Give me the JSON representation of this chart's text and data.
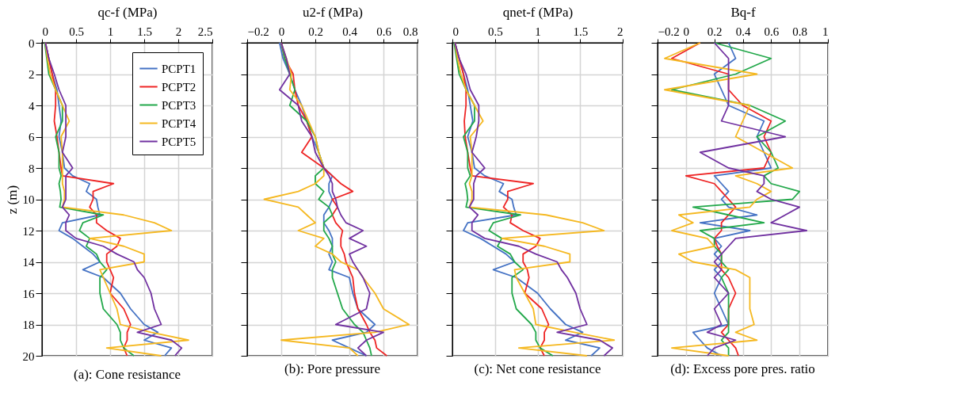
{
  "chart_data": [
    {
      "type": "line",
      "title": "(a): Cone resistance",
      "xlabel": "qc-f (MPa)",
      "ylabel": "z (m)",
      "xlim": [
        0,
        2.5
      ],
      "xticks": [
        0,
        0.5,
        1,
        1.5,
        2,
        2.5
      ],
      "ylim": [
        20,
        0
      ],
      "yticks": [
        0,
        2,
        4,
        6,
        8,
        10,
        12,
        14,
        16,
        18,
        20
      ],
      "grid": true,
      "legend": "top right",
      "series": [
        {
          "name": "PCPT1",
          "color": "#4472c4",
          "x": [
            0.05,
            0.1,
            0.15,
            0.22,
            0.25,
            0.28,
            0.25,
            0.3,
            0.33,
            0.45,
            0.7,
            0.65,
            0.8,
            0.82,
            0.85,
            0.3,
            0.25,
            0.45,
            0.6,
            0.75,
            0.85,
            0.6,
            0.9,
            1.15,
            1.3,
            1.5,
            1.7,
            1.5,
            1.9,
            1.8
          ],
          "values": [
            0,
            1,
            2,
            3,
            4,
            5,
            6,
            7,
            8,
            8.5,
            9,
            9.5,
            10,
            10.5,
            11,
            11.5,
            12,
            12.5,
            13,
            13.5,
            14,
            14.5,
            15,
            16,
            17,
            18,
            18.5,
            19,
            19.5,
            20
          ]
        },
        {
          "name": "PCPT2",
          "color": "#ee2424",
          "x": [
            0.05,
            0.1,
            0.15,
            0.2,
            0.2,
            0.18,
            0.22,
            0.25,
            0.28,
            0.3,
            1.05,
            0.75,
            0.75,
            0.7,
            0.8,
            0.8,
            0.95,
            1.15,
            1.1,
            0.95,
            0.95,
            1.0,
            1.05,
            1.0,
            1.2,
            1.3,
            1.25,
            1.25,
            1.2,
            1.25
          ],
          "values": [
            0,
            1,
            2,
            3,
            4,
            5,
            6,
            7,
            8,
            8.5,
            9,
            9.5,
            10,
            10.5,
            11,
            11.5,
            12,
            12.5,
            13,
            13.5,
            14,
            14.5,
            15,
            16,
            17,
            18,
            18.5,
            19,
            19.5,
            20
          ]
        },
        {
          "name": "PCPT3",
          "color": "#22a84a",
          "x": [
            0.04,
            0.07,
            0.1,
            0.2,
            0.3,
            0.3,
            0.2,
            0.25,
            0.25,
            0.28,
            0.25,
            0.27,
            0.28,
            0.26,
            0.9,
            0.6,
            0.55,
            0.7,
            0.65,
            0.8,
            0.85,
            0.95,
            0.85,
            0.85,
            0.9,
            1.1,
            1.15,
            1.15,
            1.2,
            1.35
          ],
          "values": [
            0,
            1,
            2,
            3,
            4,
            5,
            6,
            7,
            8,
            8.5,
            9,
            9.5,
            10,
            10.5,
            11,
            11.5,
            12,
            12.5,
            13,
            13.5,
            14,
            14.5,
            15,
            16,
            17,
            18,
            18.5,
            19,
            19.5,
            20
          ]
        },
        {
          "name": "PCPT4",
          "color": "#f5b820",
          "x": [
            0.05,
            0.08,
            0.12,
            0.2,
            0.3,
            0.4,
            0.28,
            0.3,
            0.3,
            0.3,
            0.3,
            0.33,
            0.33,
            0.3,
            1.2,
            1.65,
            1.9,
            0.7,
            1.2,
            1.5,
            1.5,
            0.85,
            0.9,
            1.0,
            1.1,
            1.15,
            1.6,
            2.15,
            0.95,
            1.75
          ],
          "values": [
            0,
            1,
            2,
            3,
            4,
            5,
            6,
            7,
            8,
            8.5,
            9,
            9.5,
            10,
            10.5,
            11,
            11.5,
            12,
            12.5,
            13,
            13.5,
            14,
            14.5,
            15,
            16,
            17,
            18,
            18.5,
            19,
            19.5,
            20
          ]
        },
        {
          "name": "PCPT5",
          "color": "#7030a0",
          "x": [
            0.05,
            0.1,
            0.18,
            0.25,
            0.35,
            0.35,
            0.35,
            0.3,
            0.45,
            0.35,
            0.35,
            0.35,
            0.35,
            0.3,
            0.4,
            0.35,
            0.35,
            0.5,
            0.9,
            1.1,
            1.35,
            1.4,
            1.5,
            1.6,
            1.65,
            1.75,
            1.4,
            1.9,
            2.05,
            1.95
          ],
          "values": [
            0,
            1,
            2,
            3,
            4,
            5,
            6,
            7,
            8,
            8.5,
            9,
            9.5,
            10,
            10.5,
            11,
            11.5,
            12,
            12.5,
            13,
            13.5,
            14,
            14.5,
            15,
            16,
            17,
            18,
            18.5,
            19,
            19.5,
            20
          ]
        }
      ]
    },
    {
      "type": "line",
      "title": "(b): Pore pressure",
      "xlabel": "u2-f (MPa)",
      "xlim": [
        -0.2,
        0.8
      ],
      "xticks": [
        -0.2,
        0,
        0.2,
        0.4,
        0.6,
        0.8
      ],
      "ylim": [
        20,
        0
      ],
      "yticks": [
        0,
        2,
        4,
        6,
        8,
        10,
        12,
        14,
        16,
        18,
        20
      ],
      "tick_labels": "x",
      "grid": true,
      "series": [
        {
          "color": "#4472c4",
          "x": [
            -0.01,
            0.01,
            0.05,
            0.08,
            0.12,
            0.15,
            0.18,
            0.22,
            0.25,
            0.3,
            0.28,
            0.28,
            0.3,
            0.28,
            0.25,
            0.25,
            0.28,
            0.3,
            0.3,
            0.28,
            0.3,
            0.28,
            0.4,
            0.42,
            0.45,
            0.55,
            0.5,
            0.3,
            0.4,
            0.5
          ],
          "values": [
            0,
            1,
            2,
            3,
            4,
            5,
            6,
            7,
            8,
            8.5,
            9,
            9.5,
            10,
            10.5,
            11,
            11.5,
            12,
            12.5,
            13,
            13.5,
            14,
            14.5,
            15,
            16,
            17,
            18,
            18.5,
            19,
            19.5,
            20
          ]
        },
        {
          "color": "#ee2424",
          "x": [
            0,
            0.02,
            0.07,
            0.08,
            0.1,
            0.15,
            0.18,
            0.12,
            0.25,
            0.3,
            0.35,
            0.42,
            0.3,
            0.33,
            0.3,
            0.32,
            0.36,
            0.35,
            0.35,
            0.37,
            0.38,
            0.4,
            0.42,
            0.43,
            0.45,
            0.5,
            0.52,
            0.55,
            0.56,
            0.62
          ],
          "values": [
            0,
            1,
            2,
            3,
            4,
            5,
            6,
            7,
            8,
            8.5,
            9,
            9.5,
            10,
            10.5,
            11,
            11.5,
            12,
            12.5,
            13,
            13.5,
            14,
            14.5,
            15,
            16,
            17,
            18,
            18.5,
            19,
            19.5,
            20
          ]
        },
        {
          "color": "#22a84a",
          "x": [
            0,
            0.02,
            0.05,
            0.08,
            0.05,
            0.15,
            0.2,
            0.22,
            0.25,
            0.2,
            0.2,
            0.25,
            0.22,
            0.28,
            0.3,
            0.25,
            0.25,
            0.28,
            0.3,
            0.3,
            0.32,
            0.3,
            0.3,
            0.33,
            0.36,
            0.43,
            0.48,
            0.5,
            0.52,
            0.53
          ],
          "values": [
            0,
            1,
            2,
            3,
            4,
            5,
            6,
            7,
            8,
            8.5,
            9,
            9.5,
            10,
            10.5,
            11,
            11.5,
            12,
            12.5,
            13,
            13.5,
            14,
            14.5,
            15,
            16,
            17,
            18,
            18.5,
            19,
            19.5,
            20
          ]
        },
        {
          "color": "#f5b820",
          "x": [
            0,
            0.03,
            0.06,
            0.05,
            0.12,
            0.16,
            0.2,
            0.22,
            0.25,
            0.25,
            0.2,
            0.1,
            -0.1,
            0.1,
            0.15,
            0.2,
            0.1,
            0.25,
            0.2,
            0.3,
            0.35,
            0.45,
            0.48,
            0.55,
            0.6,
            0.75,
            0.55,
            0,
            0.4,
            0.45
          ],
          "values": [
            0,
            1,
            2,
            3,
            4,
            5,
            6,
            7,
            8,
            8.5,
            9,
            9.5,
            10,
            10.5,
            11,
            11.5,
            12,
            12.5,
            13,
            13.5,
            14,
            14.5,
            15,
            16,
            17,
            18,
            18.5,
            19,
            19.5,
            20
          ]
        },
        {
          "color": "#7030a0",
          "x": [
            0,
            0.03,
            0.05,
            -0.01,
            0.1,
            0.12,
            0.18,
            0.2,
            0.25,
            0.28,
            0.3,
            0.3,
            0.32,
            0.33,
            0.35,
            0.38,
            0.48,
            0.4,
            0.5,
            0.4,
            0.42,
            0.45,
            0.48,
            0.52,
            0.5,
            0.32,
            0.6,
            0.5,
            0.45,
            0.5
          ],
          "values": [
            0,
            1,
            2,
            3,
            4,
            5,
            6,
            7,
            8,
            8.5,
            9,
            9.5,
            10,
            10.5,
            11,
            11.5,
            12,
            12.5,
            13,
            13.5,
            14,
            14.5,
            15,
            16,
            17,
            18,
            18.5,
            19,
            19.5,
            20
          ]
        }
      ]
    },
    {
      "type": "line",
      "title": "(c): Net cone resistance",
      "xlabel": "qnet-f (MPa)",
      "xlim": [
        0,
        2
      ],
      "xticks": [
        0,
        0.5,
        1,
        1.5,
        2
      ],
      "ylim": [
        20,
        0
      ],
      "yticks": [
        0,
        2,
        4,
        6,
        8,
        10,
        12,
        14,
        16,
        18,
        20
      ],
      "tick_labels": "x",
      "grid": true,
      "series": [
        {
          "color": "#4472c4",
          "x": [
            0.03,
            0.08,
            0.13,
            0.18,
            0.21,
            0.24,
            0.18,
            0.23,
            0.26,
            0.38,
            0.6,
            0.55,
            0.7,
            0.72,
            0.75,
            0.18,
            0.13,
            0.33,
            0.48,
            0.63,
            0.73,
            0.48,
            0.75,
            1.0,
            1.15,
            1.33,
            1.53,
            1.33,
            1.73,
            1.63
          ],
          "values": [
            0,
            1,
            2,
            3,
            4,
            5,
            6,
            7,
            8,
            8.5,
            9,
            9.5,
            10,
            10.5,
            11,
            11.5,
            12,
            12.5,
            13,
            13.5,
            14,
            14.5,
            15,
            16,
            17,
            18,
            18.5,
            19,
            19.5,
            20
          ]
        },
        {
          "color": "#ee2424",
          "x": [
            0.03,
            0.08,
            0.13,
            0.16,
            0.16,
            0.14,
            0.15,
            0.18,
            0.21,
            0.23,
            0.95,
            0.65,
            0.65,
            0.6,
            0.7,
            0.68,
            0.83,
            1.03,
            0.98,
            0.83,
            0.83,
            0.88,
            0.9,
            0.85,
            1.05,
            1.13,
            1.08,
            1.08,
            1.03,
            1.08
          ],
          "values": [
            0,
            1,
            2,
            3,
            4,
            5,
            6,
            7,
            8,
            8.5,
            9,
            9.5,
            10,
            10.5,
            11,
            11.5,
            12,
            12.5,
            13,
            13.5,
            14,
            14.5,
            15,
            16,
            17,
            18,
            18.5,
            19,
            19.5,
            20
          ]
        },
        {
          "color": "#22a84a",
          "x": [
            0.02,
            0.05,
            0.08,
            0.16,
            0.26,
            0.26,
            0.13,
            0.18,
            0.18,
            0.21,
            0.15,
            0.17,
            0.18,
            0.16,
            0.8,
            0.48,
            0.43,
            0.58,
            0.53,
            0.68,
            0.73,
            0.83,
            0.7,
            0.7,
            0.75,
            0.93,
            0.98,
            0.98,
            1.03,
            1.18
          ],
          "values": [
            0,
            1,
            2,
            3,
            4,
            5,
            6,
            7,
            8,
            8.5,
            9,
            9.5,
            10,
            10.5,
            11,
            11.5,
            12,
            12.5,
            13,
            13.5,
            14,
            14.5,
            15,
            16,
            17,
            18,
            18.5,
            19,
            19.5,
            20
          ]
        },
        {
          "color": "#f5b820",
          "x": [
            0.03,
            0.06,
            0.1,
            0.16,
            0.26,
            0.36,
            0.21,
            0.23,
            0.23,
            0.23,
            0.2,
            0.23,
            0.23,
            0.2,
            1.1,
            1.53,
            1.78,
            0.58,
            1.08,
            1.38,
            1.38,
            0.73,
            0.75,
            0.85,
            0.95,
            0.98,
            1.43,
            1.9,
            0.78,
            1.58
          ],
          "values": [
            0,
            1,
            2,
            3,
            4,
            5,
            6,
            7,
            8,
            8.5,
            9,
            9.5,
            10,
            10.5,
            11,
            11.5,
            12,
            12.5,
            13,
            13.5,
            14,
            14.5,
            15,
            16,
            17,
            18,
            18.5,
            19,
            19.5,
            20
          ]
        },
        {
          "color": "#7030a0",
          "x": [
            0.03,
            0.08,
            0.16,
            0.21,
            0.31,
            0.31,
            0.28,
            0.23,
            0.38,
            0.28,
            0.25,
            0.25,
            0.25,
            0.2,
            0.3,
            0.23,
            0.23,
            0.38,
            0.78,
            0.98,
            1.23,
            1.28,
            1.35,
            1.45,
            1.5,
            1.58,
            1.23,
            1.73,
            1.88,
            1.78
          ],
          "values": [
            0,
            1,
            2,
            3,
            4,
            5,
            6,
            7,
            8,
            8.5,
            9,
            9.5,
            10,
            10.5,
            11,
            11.5,
            12,
            12.5,
            13,
            13.5,
            14,
            14.5,
            15,
            16,
            17,
            18,
            18.5,
            19,
            19.5,
            20
          ]
        }
      ]
    },
    {
      "type": "line",
      "title": "(d): Excess pore pres. ratio",
      "xlabel": "Bq-f",
      "xlim": [
        -0.2,
        1
      ],
      "xticks": [
        -0.2,
        0,
        0.2,
        0.4,
        0.6,
        0.8,
        1
      ],
      "ylim": [
        20,
        0
      ],
      "yticks": [
        0,
        2,
        4,
        6,
        8,
        10,
        12,
        14,
        16,
        18,
        20
      ],
      "tick_labels": "x",
      "grid": true,
      "series": [
        {
          "color": "#4472c4",
          "x": [
            0.3,
            0.35,
            0.2,
            0.25,
            0.3,
            0.55,
            0.5,
            0.55,
            0.6,
            0.2,
            0.25,
            0.3,
            0.25,
            0.3,
            0.5,
            0.1,
            0.45,
            0.2,
            0.25,
            0.2,
            0.25,
            0.2,
            0.25,
            0.2,
            0.25,
            0.3,
            0.05,
            0.1,
            0.15,
            0.25
          ],
          "values": [
            0,
            1,
            2,
            3,
            4,
            5,
            6,
            7,
            8,
            8.5,
            9,
            9.5,
            10,
            10.5,
            11,
            11.5,
            12,
            12.5,
            13,
            13.5,
            14,
            14.5,
            15,
            16,
            17,
            18,
            18.5,
            19,
            19.5,
            20
          ]
        },
        {
          "color": "#ee2424",
          "x": [
            0.1,
            -0.1,
            0.3,
            0.3,
            0.4,
            0.6,
            0.55,
            0.6,
            0.55,
            0.0,
            0.2,
            0.25,
            0.3,
            0.35,
            0.3,
            0.25,
            0.25,
            0.2,
            0.22,
            0.25,
            0.25,
            0.25,
            0.3,
            0.35,
            0.3,
            0.3,
            0.25,
            0.3,
            0.35,
            0.37
          ],
          "values": [
            0,
            1,
            2,
            3,
            4,
            5,
            6,
            7,
            8,
            8.5,
            9,
            9.5,
            10,
            10.5,
            11,
            11.5,
            12,
            12.5,
            13,
            13.5,
            14,
            14.5,
            15,
            16,
            17,
            18,
            18.5,
            19,
            19.5,
            20
          ]
        },
        {
          "color": "#22a84a",
          "x": [
            0.2,
            0.6,
            0.35,
            -0.1,
            0.45,
            0.7,
            0.5,
            0.6,
            0.65,
            0.55,
            0.6,
            0.8,
            0.75,
            0.05,
            0.3,
            0.55,
            0.1,
            0.2,
            0.2,
            0.25,
            0.25,
            0.3,
            0.25,
            0.3,
            0.3,
            0.3,
            0.3,
            0.25,
            0.3,
            0.3
          ],
          "values": [
            0,
            1,
            2,
            3,
            4,
            5,
            6,
            7,
            8,
            8.5,
            9,
            9.5,
            10,
            10.5,
            11,
            11.5,
            12,
            12.5,
            13,
            13.5,
            14,
            14.5,
            15,
            16,
            17,
            18,
            18.5,
            19,
            19.5,
            20
          ]
        },
        {
          "color": "#f5b820",
          "x": [
            0.1,
            -0.15,
            0.5,
            -0.15,
            0.45,
            0.4,
            0.35,
            0.55,
            0.75,
            0.35,
            0.5,
            0.6,
            0.5,
            0.45,
            -0.05,
            0.05,
            -0.1,
            0.15,
            0.2,
            -0.05,
            0.05,
            0.35,
            0.45,
            0.45,
            0.45,
            0.48,
            0.35,
            0.5,
            -0.1,
            0.3
          ],
          "values": [
            0,
            1,
            2,
            3,
            4,
            5,
            6,
            7,
            8,
            8.5,
            9,
            9.5,
            10,
            10.5,
            11,
            11.5,
            12,
            12.5,
            13,
            13.5,
            14,
            14.5,
            15,
            16,
            17,
            18,
            18.5,
            19,
            19.5,
            20
          ]
        },
        {
          "color": "#7030a0",
          "x": [
            0.2,
            0.3,
            0.3,
            0.3,
            0.3,
            0.25,
            0.7,
            0.1,
            0.3,
            0.55,
            0.55,
            0.5,
            0.6,
            0.8,
            0.7,
            0.6,
            0.85,
            0.35,
            0.3,
            0.25,
            0.2,
            0.25,
            0.2,
            0.3,
            0.2,
            0.25,
            0.15,
            0.35,
            0.2,
            0.15
          ],
          "values": [
            0,
            1,
            2,
            3,
            4,
            5,
            6,
            7,
            8,
            8.5,
            9,
            9.5,
            10,
            10.5,
            11,
            11.5,
            12,
            12.5,
            13,
            13.5,
            14,
            14.5,
            15,
            16,
            17,
            18,
            18.5,
            19,
            19.5,
            20
          ]
        }
      ]
    }
  ]
}
